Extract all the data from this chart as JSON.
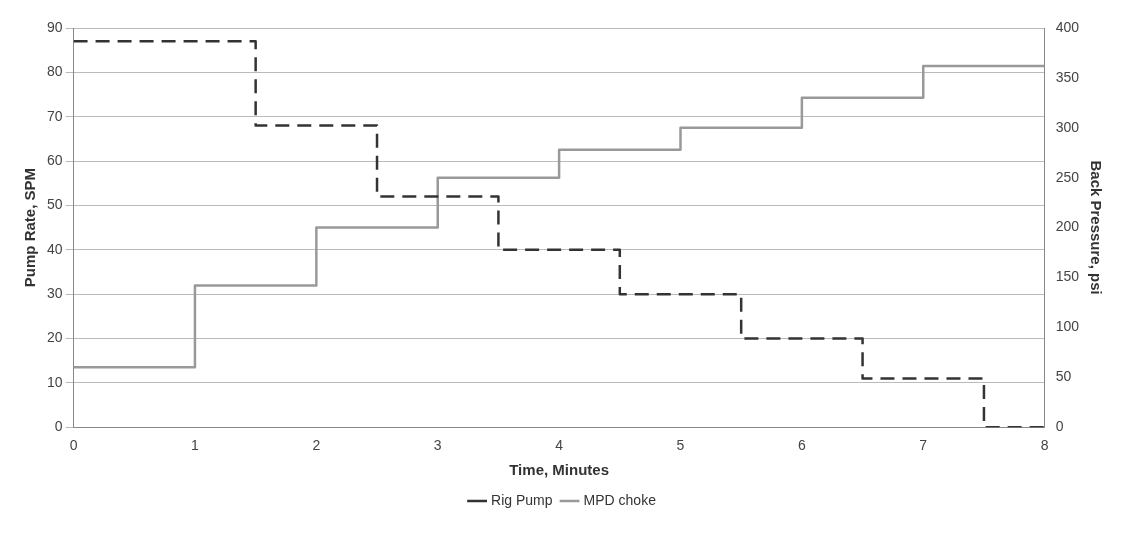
{
  "chart_data": {
    "type": "step",
    "xlabel": "Time, Minutes",
    "ylabel": "Pump Rate, SPM",
    "y2label": "Back Pressure, psi",
    "xlim": [
      0,
      8
    ],
    "xticks": [
      0,
      1,
      2,
      3,
      4,
      5,
      6,
      7,
      8
    ],
    "ylim": [
      0,
      90
    ],
    "yticks": [
      0,
      10,
      20,
      30,
      40,
      50,
      60,
      70,
      80,
      90
    ],
    "y2lim": [
      0,
      400
    ],
    "y2ticks": [
      0,
      50,
      100,
      150,
      200,
      250,
      300,
      350,
      400
    ],
    "grid": "y",
    "legend": "bottom",
    "series": [
      {
        "name": "Rig Pump",
        "color": "#333333",
        "line_style": "dashed",
        "x": [
          0,
          1.5,
          2.5,
          3.5,
          4.5,
          5.5,
          6.5,
          7.5,
          8
        ],
        "values": [
          87,
          68,
          52,
          40,
          30,
          20,
          11,
          0,
          0
        ]
      },
      {
        "name": "MPD choke",
        "color": "#999999",
        "line_style": "solid",
        "axis": "y2",
        "x": [
          0,
          1,
          2,
          3,
          4,
          5,
          6,
          7,
          8
        ],
        "values": [
          60,
          142,
          200,
          250,
          278,
          300,
          330,
          362,
          362
        ]
      }
    ]
  }
}
